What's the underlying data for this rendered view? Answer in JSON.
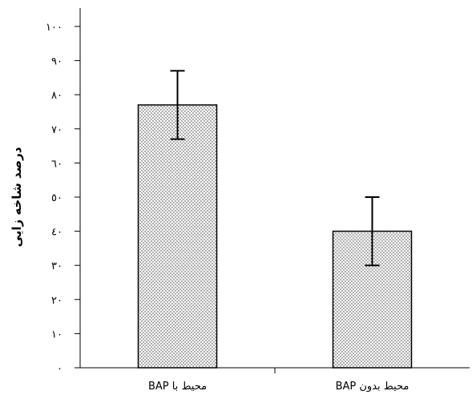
{
  "chart_data": {
    "type": "bar",
    "title": "",
    "xlabel": "",
    "ylabel": "درصد شاخه زایی",
    "categories": [
      "محیط با BAP",
      "محیط بدون BAP"
    ],
    "values": [
      77,
      40
    ],
    "error": [
      10,
      10
    ],
    "ylim": [
      0,
      100
    ],
    "yticks": [
      0,
      10,
      20,
      30,
      40,
      50,
      60,
      70,
      80,
      90,
      100
    ],
    "ytick_labels": [
      "٠",
      "١٠",
      "٢٠",
      "٣٠",
      "٤٠",
      "٥٠",
      "٦٠",
      "٧٠",
      "٨٠",
      "٩٠",
      "١٠٠"
    ],
    "bar_fill": "#e8e8e8",
    "bar_pattern": "dots",
    "grid": false,
    "legend": "none"
  }
}
